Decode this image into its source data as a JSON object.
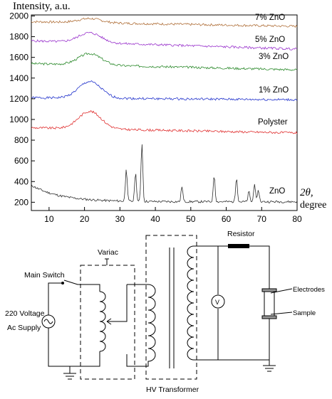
{
  "chart_data": {
    "type": "line",
    "ylabel": "Intensity, a.u.",
    "xlabel_symbol": "2θ,",
    "xlabel_unit": "degree",
    "xlim": [
      5,
      80
    ],
    "ylim": [
      120,
      2010
    ],
    "xticks": [
      10,
      20,
      30,
      40,
      50,
      60,
      70,
      80
    ],
    "yticks": [
      200,
      400,
      600,
      800,
      1000,
      1200,
      1400,
      1600,
      1800,
      2000
    ],
    "series": [
      {
        "name": "7% ZnO",
        "color": "#b0703a",
        "baseline": 1900,
        "hump": 40,
        "seed": 7,
        "points": [
          [
            5,
            1945
          ],
          [
            80,
            1900
          ]
        ]
      },
      {
        "name": "5% ZnO",
        "color": "#9932cc",
        "baseline": 1700,
        "hump": 95,
        "seed": 5,
        "points": [
          [
            5,
            1760
          ],
          [
            80,
            1680
          ]
        ]
      },
      {
        "name": "3% ZnO",
        "color": "#2e8b2e",
        "baseline": 1470,
        "hump": 110,
        "seed": 3,
        "points": [
          [
            5,
            1540
          ],
          [
            80,
            1480
          ]
        ]
      },
      {
        "name": "1% ZnO",
        "color": "#2233cc",
        "baseline": 1200,
        "hump": 160,
        "seed": 1,
        "points": [
          [
            5,
            1210
          ],
          [
            80,
            1190
          ]
        ]
      },
      {
        "name": "Polyster",
        "color": "#e03030",
        "baseline": 880,
        "hump": 170,
        "seed": 9,
        "points": [
          [
            5,
            920
          ],
          [
            80,
            870
          ]
        ]
      },
      {
        "name": "ZnO",
        "color": "#303030",
        "baseline": 200,
        "hump": 0,
        "seed": 11,
        "points": [
          [
            5,
            360
          ],
          [
            80,
            210
          ]
        ],
        "peaks": [
          [
            31.8,
            520
          ],
          [
            34.4,
            480
          ],
          [
            36.2,
            770
          ],
          [
            47.5,
            350
          ],
          [
            56.6,
            460
          ],
          [
            62.9,
            440
          ],
          [
            66.4,
            300
          ],
          [
            68.0,
            380
          ],
          [
            69.1,
            310
          ]
        ]
      }
    ]
  },
  "circuit": {
    "labels": {
      "variac": "Variac",
      "main_switch": "Main Switch",
      "supply_line1": "220 Voltage",
      "supply_line2": "Ac Supply",
      "resistor": "Resistor",
      "electrodes": "Electrodes",
      "sample": "Sample",
      "hv_transformer": "HV Transformer",
      "voltmeter": "V"
    }
  }
}
